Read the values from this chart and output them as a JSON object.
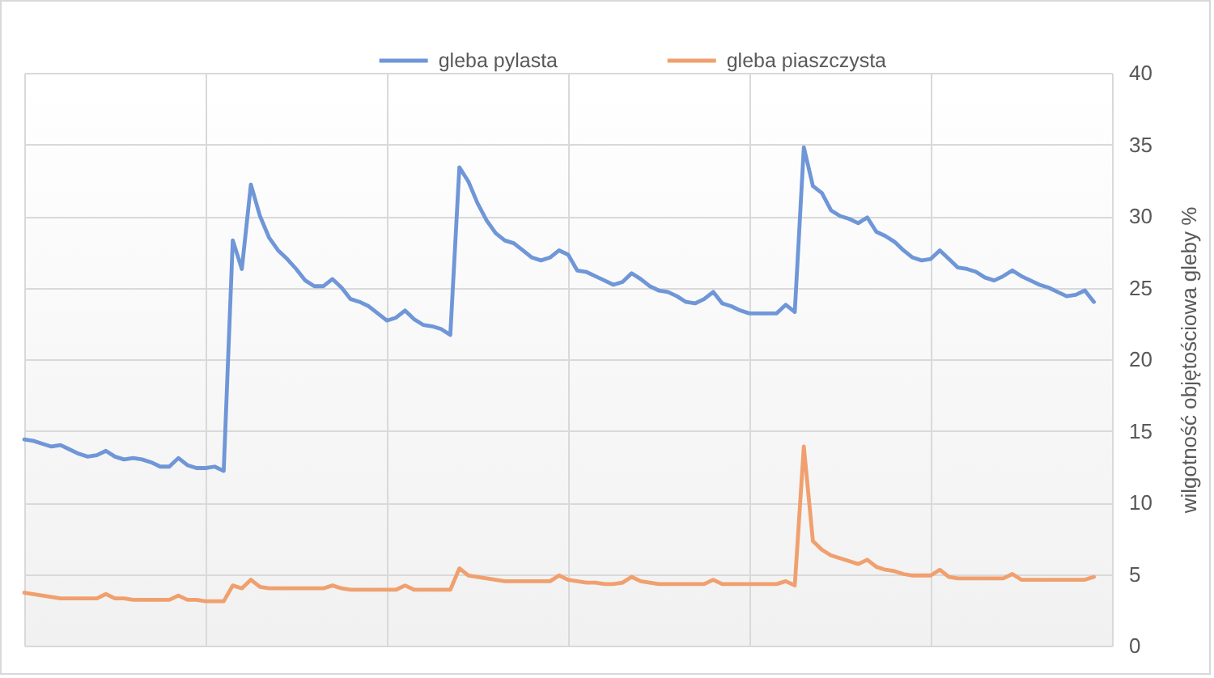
{
  "chart_data": {
    "type": "line",
    "categories": [
      null,
      null,
      null,
      null,
      null,
      null,
      null,
      null,
      null,
      null,
      null,
      null,
      null,
      null,
      null,
      null,
      null,
      null,
      null,
      null,
      null,
      null,
      null,
      null,
      null,
      null,
      null,
      null,
      null,
      null,
      null,
      null,
      null,
      null,
      null,
      null,
      null,
      null,
      null,
      null,
      null,
      null,
      null,
      null,
      null,
      null,
      null,
      null,
      null,
      null,
      null,
      null,
      null,
      null,
      null,
      null,
      null,
      null,
      null,
      null,
      null,
      null,
      null,
      null,
      null,
      null,
      null,
      null,
      null,
      null,
      null,
      null,
      null,
      null,
      null,
      null,
      null,
      null,
      null,
      null,
      null,
      null,
      null,
      null,
      null,
      null,
      null,
      null,
      null,
      null,
      null,
      null,
      null,
      null,
      null,
      null,
      null,
      null,
      null,
      null,
      null,
      null,
      null,
      null,
      null,
      null,
      null,
      null,
      null,
      null,
      null,
      null,
      null,
      null,
      null,
      null,
      null,
      null,
      null,
      null,
      null
    ],
    "series": [
      {
        "name": "gleba pylasta",
        "color": "#6f96d7",
        "values": [
          14.4,
          14.3,
          14.1,
          13.9,
          14.0,
          13.7,
          13.4,
          13.2,
          13.3,
          13.6,
          13.2,
          13.0,
          13.1,
          13.0,
          12.8,
          12.5,
          12.5,
          13.1,
          12.6,
          12.4,
          12.4,
          12.5,
          12.2,
          28.3,
          26.3,
          32.2,
          30.0,
          28.5,
          27.6,
          27.0,
          26.3,
          25.5,
          25.1,
          25.1,
          25.6,
          25.0,
          24.2,
          24.0,
          23.7,
          23.2,
          22.7,
          22.9,
          23.4,
          22.8,
          22.4,
          22.3,
          22.1,
          21.7,
          33.4,
          32.4,
          30.9,
          29.7,
          28.8,
          28.3,
          28.1,
          27.6,
          27.1,
          26.9,
          27.1,
          27.6,
          27.3,
          26.2,
          26.1,
          25.8,
          25.5,
          25.2,
          25.4,
          26.0,
          25.6,
          25.1,
          24.8,
          24.7,
          24.4,
          24.0,
          23.9,
          24.2,
          24.7,
          23.9,
          23.7,
          23.4,
          23.2,
          23.2,
          23.2,
          23.2,
          23.8,
          23.3,
          34.8,
          32.1,
          31.6,
          30.4,
          30.0,
          29.8,
          29.5,
          29.9,
          28.9,
          28.6,
          28.2,
          27.6,
          27.1,
          26.9,
          27.0,
          27.6,
          27.0,
          26.4,
          26.3,
          26.1,
          25.7,
          25.5,
          25.8,
          26.2,
          25.8,
          25.5,
          25.2,
          25.0,
          24.7,
          24.4,
          24.5,
          24.8,
          24.0,
          null,
          null
        ]
      },
      {
        "name": "gleba piaszczysta",
        "color": "#f0a06e",
        "values": [
          3.7,
          3.6,
          3.5,
          3.4,
          3.3,
          3.3,
          3.3,
          3.3,
          3.3,
          3.6,
          3.3,
          3.3,
          3.2,
          3.2,
          3.2,
          3.2,
          3.2,
          3.5,
          3.2,
          3.2,
          3.1,
          3.1,
          3.1,
          4.2,
          4.0,
          4.6,
          4.1,
          4.0,
          4.0,
          4.0,
          4.0,
          4.0,
          4.0,
          4.0,
          4.2,
          4.0,
          3.9,
          3.9,
          3.9,
          3.9,
          3.9,
          3.9,
          4.2,
          3.9,
          3.9,
          3.9,
          3.9,
          3.9,
          5.4,
          4.9,
          4.8,
          4.7,
          4.6,
          4.5,
          4.5,
          4.5,
          4.5,
          4.5,
          4.5,
          4.9,
          4.6,
          4.5,
          4.4,
          4.4,
          4.3,
          4.3,
          4.4,
          4.8,
          4.5,
          4.4,
          4.3,
          4.3,
          4.3,
          4.3,
          4.3,
          4.3,
          4.6,
          4.3,
          4.3,
          4.3,
          4.3,
          4.3,
          4.3,
          4.3,
          4.5,
          4.2,
          13.9,
          7.3,
          6.7,
          6.3,
          6.1,
          5.9,
          5.7,
          6.0,
          5.5,
          5.3,
          5.2,
          5.0,
          4.9,
          4.9,
          4.9,
          5.3,
          4.8,
          4.7,
          4.7,
          4.7,
          4.7,
          4.7,
          4.7,
          5.0,
          4.6,
          4.6,
          4.6,
          4.6,
          4.6,
          4.6,
          4.6,
          4.6,
          4.8,
          null,
          null
        ]
      }
    ],
    "ylabel": "wilgotność objętościowa gleby %",
    "ylim": [
      0,
      40
    ],
    "yticks": [
      0,
      5,
      10,
      15,
      20,
      25,
      30,
      35,
      40
    ],
    "grid": true,
    "legend": "top"
  }
}
